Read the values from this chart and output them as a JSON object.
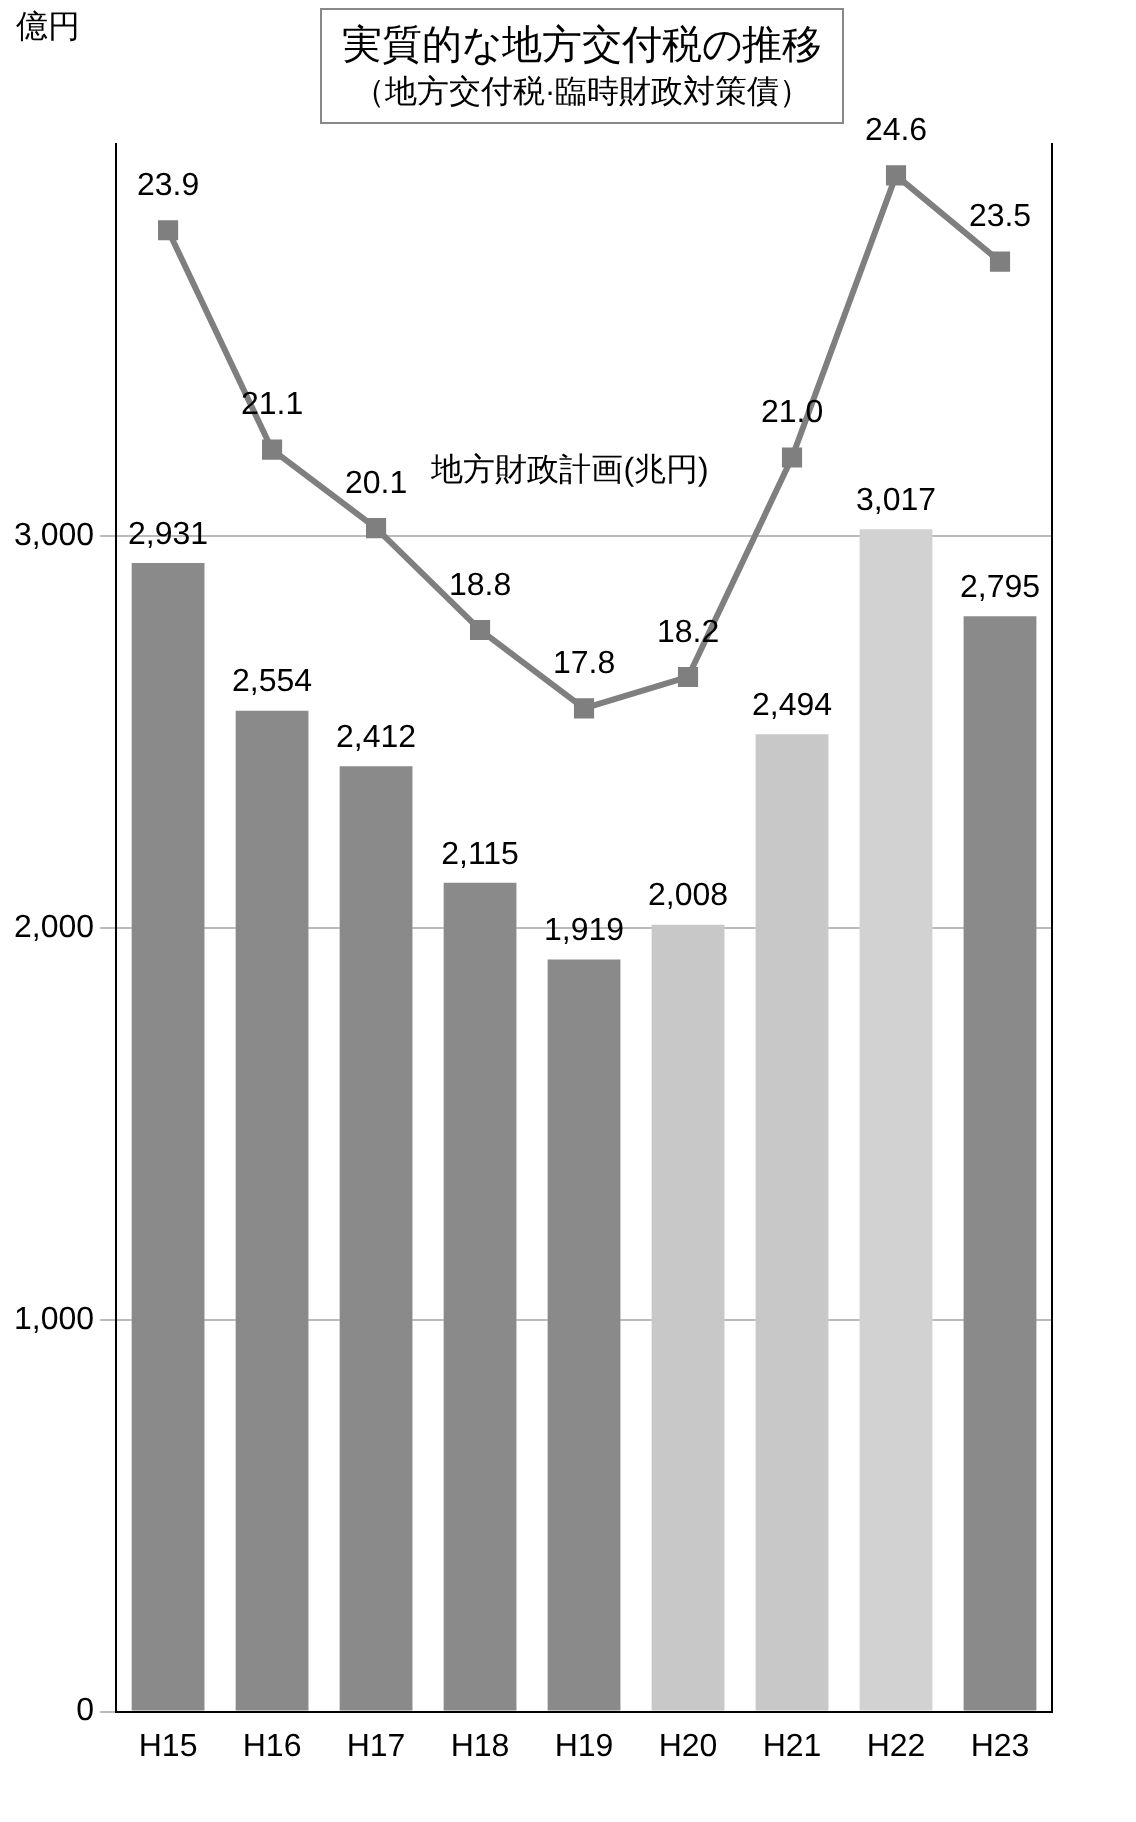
{
  "chart_data": {
    "type": "bar",
    "title": "実質的な地方交付税の推移",
    "subtitle": "（地方交付税·臨時財政対策債）",
    "ylabel": "億円",
    "categories": [
      "H15",
      "H16",
      "H17",
      "H18",
      "H19",
      "H20",
      "H21",
      "H22",
      "H23"
    ],
    "series": [
      {
        "colors": [
          "#8a8a8a",
          "#8a8a8a",
          "#8a8a8a",
          "#8a8a8a",
          "#8a8a8a",
          "#c8c8c8",
          "#c8c8c8",
          "#d2d2d2",
          "#8a8a8a"
        ],
        "values": [
          2931,
          2554,
          2412,
          2115,
          1919,
          2008,
          2494,
          3017,
          2795
        ],
        "value_labels": [
          "2,931",
          "2,554",
          "2,412",
          "2,115",
          "1,919",
          "2,008",
          "2,494",
          "3,017",
          "2,795"
        ]
      },
      {
        "type": "line",
        "axis": "y2",
        "name": "地方財政計画(兆円)",
        "color": "#7f7f7f",
        "values": [
          23.9,
          21.1,
          20.1,
          18.8,
          17.8,
          18.2,
          21.0,
          24.6,
          23.5
        ],
        "value_labels": [
          "23.9",
          "21.1",
          "20.1",
          "18.8",
          "17.8",
          "18.2",
          "21.0",
          "24.6",
          "23.5"
        ]
      }
    ],
    "ylim": [
      0,
      4000
    ],
    "yticks": [
      0,
      {
        "value": 1000,
        "label": "1,000"
      },
      {
        "value": 2000,
        "label": "2,000"
      },
      {
        "value": 3000,
        "label": "3,000"
      }
    ],
    "y2lim": [
      5,
      25
    ],
    "grid": "y",
    "legend": false,
    "marker": "square",
    "line_style": "solid"
  }
}
